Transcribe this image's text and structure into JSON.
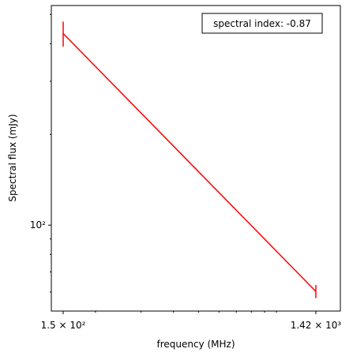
{
  "chart_data": {
    "type": "line",
    "xlabel": "frequency (MHz)",
    "ylabel": "Spectral flux (mJy)",
    "annotation": "spectral index: -0.87",
    "xscale": "log",
    "yscale": "log",
    "x": [
      150,
      1420
    ],
    "series": [
      {
        "color": "#ff0000",
        "values": [
          432,
          60.3
        ],
        "errors": [
          41,
          3
        ]
      }
    ],
    "xlim": [
      135,
      1766
    ],
    "ylim": [
      51.9,
      535
    ],
    "xticks": [
      {
        "value": 150,
        "label": "1.5 × 10²"
      },
      {
        "value": 1420,
        "label": "1.42 × 10³"
      }
    ],
    "yticks": [
      {
        "value": 100,
        "label": "10²"
      }
    ],
    "x_minor_ticks": [
      200,
      300,
      400,
      500,
      600,
      700,
      800,
      900,
      1000
    ],
    "y_minor_ticks": [
      60,
      70,
      80,
      90,
      200,
      300,
      400,
      500
    ]
  }
}
